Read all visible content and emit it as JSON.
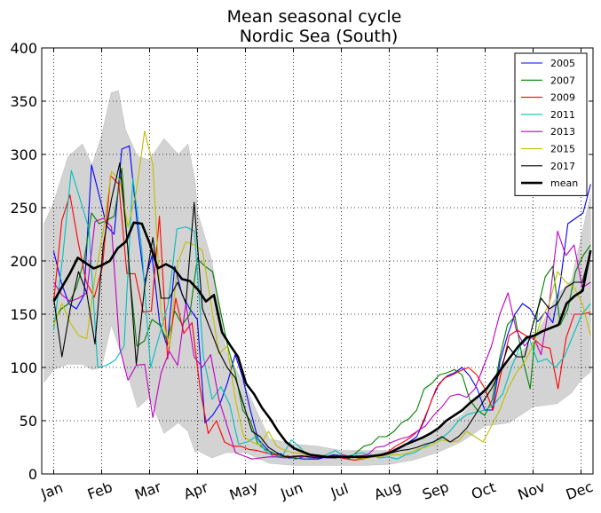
{
  "chart_data": {
    "type": "line",
    "title": "Mean seasonal cycle",
    "subtitle": "Nordic Sea (South)",
    "xlabel": "",
    "ylabel": "",
    "ylim": [
      0,
      400
    ],
    "yticks": [
      0,
      50,
      100,
      150,
      200,
      250,
      300,
      350,
      400
    ],
    "xlim": [
      0.75,
      12.25
    ],
    "x_tick_labels": [
      "Jan",
      "Feb",
      "Mar",
      "Apr",
      "May",
      "Jun",
      "Jul",
      "Aug",
      "Sep",
      "Oct",
      "Nov",
      "Dec"
    ],
    "grid": true,
    "legend_position": "top-right",
    "band": {
      "name": "range",
      "color": "#d3d3d3",
      "x": [
        0.8,
        1.0,
        1.3,
        1.6,
        1.8,
        2.0,
        2.2,
        2.35,
        2.5,
        2.75,
        3.0,
        3.3,
        3.6,
        3.8,
        3.95,
        4.0,
        4.3,
        4.6,
        5.0,
        5.5,
        6.0,
        6.5,
        7.0,
        7.5,
        8.0,
        8.5,
        9.0,
        9.5,
        10.0,
        10.5,
        11.0,
        11.5,
        11.8,
        12.0,
        12.2
      ],
      "upper": [
        235,
        255,
        298,
        310,
        290,
        318,
        358,
        360,
        323,
        298,
        295,
        315,
        300,
        310,
        275,
        246,
        200,
        115,
        82,
        33,
        28,
        26,
        22,
        22,
        22,
        30,
        42,
        55,
        80,
        105,
        125,
        168,
        182,
        222,
        262
      ],
      "lower": [
        86,
        98,
        103,
        103,
        98,
        100,
        140,
        120,
        100,
        62,
        72,
        38,
        48,
        40,
        20,
        22,
        15,
        20,
        20,
        10,
        8,
        8,
        8,
        8,
        9,
        13,
        20,
        30,
        45,
        48,
        63,
        66,
        76,
        88,
        96
      ]
    },
    "series": [
      {
        "name": "2005",
        "color": "#0000ff",
        "values": [
          209,
          180,
          160,
          155,
          168,
          290,
          262,
          233,
          225,
          305,
          308,
          238,
          180,
          205,
          142,
          120,
          195,
          168,
          155,
          145,
          48,
          55,
          66,
          86,
          112,
          90,
          60,
          33,
          25,
          18,
          19,
          15,
          15,
          14,
          14,
          14,
          16,
          18,
          17,
          15,
          17,
          16,
          16,
          18,
          20,
          22,
          25,
          30,
          35,
          50,
          70,
          85,
          92,
          95,
          100,
          92,
          80,
          60,
          60,
          105,
          130,
          150,
          160,
          155,
          143,
          152,
          142,
          180,
          235,
          240,
          245,
          272
        ]
      },
      {
        "name": "2007",
        "color": "#008000",
        "values": [
          143,
          155,
          160,
          175,
          200,
          245,
          235,
          238,
          242,
          287,
          190,
          120,
          125,
          145,
          140,
          125,
          153,
          140,
          150,
          202,
          195,
          190,
          155,
          120,
          95,
          60,
          50,
          28,
          23,
          20,
          16,
          17,
          14,
          16,
          18,
          17,
          16,
          17,
          15,
          14,
          20,
          26,
          28,
          35,
          35,
          40,
          48,
          52,
          60,
          80,
          85,
          93,
          95,
          98,
          93,
          70,
          60,
          55,
          70,
          110,
          140,
          148,
          108,
          80,
          155,
          185,
          195,
          140,
          155,
          190,
          205,
          215
        ]
      },
      {
        "name": "2009",
        "color": "#ff0000",
        "values": [
          162,
          238,
          262,
          218,
          180,
          166,
          195,
          280,
          272,
          188,
          188,
          152,
          153,
          242,
          108,
          165,
          132,
          142,
          80,
          38,
          50,
          30,
          26,
          26,
          23,
          22,
          20,
          18,
          17,
          16,
          17,
          16,
          15,
          17,
          16,
          16,
          14,
          13,
          14,
          16,
          18,
          20,
          26,
          30,
          35,
          42,
          60,
          80,
          90,
          93,
          97,
          100,
          93,
          80,
          60,
          95,
          130,
          135,
          130,
          127,
          120,
          118,
          80,
          128,
          150,
          150,
          152
        ]
      },
      {
        "name": "2011",
        "color": "#00bfbf",
        "values": [
          135,
          202,
          285,
          258,
          230,
          100,
          102,
          107,
          120,
          278,
          212,
          100,
          130,
          160,
          230,
          232,
          228,
          110,
          70,
          82,
          65,
          28,
          30,
          35,
          22,
          16,
          17,
          32,
          25,
          15,
          16,
          18,
          22,
          16,
          18,
          20,
          18,
          15,
          16,
          14,
          18,
          20,
          25,
          30,
          33,
          40,
          50,
          56,
          58,
          60,
          65,
          75,
          100,
          120,
          128,
          105,
          108,
          100,
          110,
          130,
          150,
          160
        ]
      },
      {
        "name": "2013",
        "color": "#bf00bf",
        "values": [
          180,
          168,
          162,
          165,
          170,
          237,
          240,
          232,
          118,
          88,
          102,
          103,
          53,
          95,
          115,
          102,
          160,
          110,
          100,
          112,
          70,
          45,
          20,
          17,
          14,
          15,
          16,
          16,
          15,
          17,
          16,
          17,
          16,
          15,
          15,
          18,
          16,
          17,
          18,
          25,
          26,
          30,
          33,
          35,
          40,
          45,
          55,
          63,
          73,
          75,
          72,
          80,
          100,
          120,
          150,
          170,
          135,
          120,
          130,
          112,
          160,
          228,
          205,
          215,
          175,
          180
        ]
      },
      {
        "name": "2015",
        "color": "#bfbf00",
        "values": [
          140,
          160,
          142,
          130,
          127,
          185,
          228,
          284,
          276,
          232,
          265,
          322,
          290,
          150,
          120,
          198,
          218,
          215,
          210,
          162,
          113,
          120,
          70,
          35,
          30,
          27,
          40,
          26,
          22,
          20,
          19,
          17,
          18,
          16,
          15,
          16,
          17,
          14,
          15,
          16,
          17,
          18,
          18,
          20,
          23,
          25,
          28,
          32,
          30,
          31,
          40,
          35,
          30,
          45,
          60,
          80,
          95,
          105,
          120,
          145,
          160,
          190,
          180,
          175,
          160,
          130
        ]
      },
      {
        "name": "2017",
        "color": "#000000",
        "values": [
          165,
          110,
          155,
          190,
          170,
          122,
          215,
          258,
          292,
          210,
          103,
          175,
          222,
          165,
          165,
          180,
          160,
          255,
          155,
          135,
          115,
          100,
          90,
          65,
          40,
          35,
          25,
          20,
          16,
          16,
          17,
          16,
          15,
          16,
          15,
          16,
          17,
          15,
          16,
          17,
          18,
          20,
          22,
          23,
          25,
          28,
          30,
          35,
          30,
          35,
          43,
          55,
          68,
          80,
          95,
          120,
          110,
          110,
          140,
          165,
          155,
          160,
          175,
          180,
          180,
          210
        ]
      },
      {
        "name": "mean",
        "color": "#000000",
        "bold": true,
        "values": [
          162,
          175,
          188,
          203,
          198,
          193,
          196,
          200,
          212,
          218,
          236,
          235,
          216,
          193,
          197,
          193,
          183,
          181,
          173,
          162,
          168,
          133,
          121,
          110,
          85,
          75,
          62,
          52,
          40,
          30,
          24,
          21,
          18,
          17,
          16,
          16,
          16,
          16,
          16,
          16,
          17,
          18,
          20,
          24,
          28,
          31,
          34,
          38,
          43,
          50,
          55,
          60,
          67,
          73,
          80,
          90,
          100,
          110,
          120,
          128,
          130,
          134,
          137,
          140,
          160,
          167,
          172,
          210
        ]
      }
    ]
  }
}
